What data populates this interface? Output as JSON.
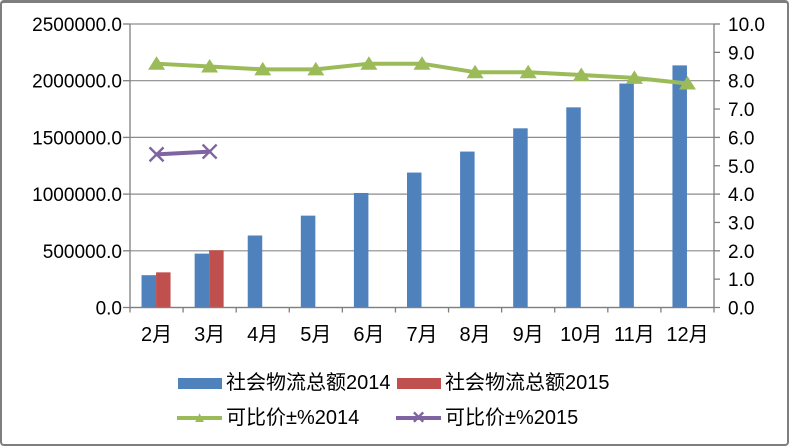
{
  "chart_data": {
    "type": "combo-bar-line",
    "title": "",
    "categories": [
      "2月",
      "3月",
      "4月",
      "5月",
      "6月",
      "7月",
      "8月",
      "9月",
      "10月",
      "11月",
      "12月"
    ],
    "series": [
      {
        "name": "社会物流总额2014",
        "type": "bar",
        "axis": "left",
        "color": "#4F81BD",
        "values": [
          285000,
          475000,
          635000,
          810000,
          1010000,
          1190000,
          1375000,
          1580000,
          1765000,
          1975000,
          2135000
        ]
      },
      {
        "name": "社会物流总额2015",
        "type": "bar",
        "axis": "left",
        "color": "#C0504D",
        "values": [
          310000,
          505000,
          null,
          null,
          null,
          null,
          null,
          null,
          null,
          null,
          null
        ]
      },
      {
        "name": "可比价±%2014",
        "type": "line",
        "marker": "triangle",
        "axis": "right",
        "color": "#9BBB59",
        "values": [
          8.6,
          8.5,
          8.4,
          8.4,
          8.6,
          8.6,
          8.3,
          8.3,
          8.2,
          8.1,
          7.9
        ]
      },
      {
        "name": "可比价±%2015",
        "type": "line",
        "marker": "x",
        "axis": "right",
        "color": "#8064A2",
        "values": [
          5.4,
          5.5,
          null,
          null,
          null,
          null,
          null,
          null,
          null,
          null,
          null
        ]
      }
    ],
    "left_axis": {
      "min": 0,
      "max": 2500000,
      "step": 500000,
      "tick_labels": [
        "0.0",
        "500000.0",
        "1000000.0",
        "1500000.0",
        "2000000.0",
        "2500000.0"
      ]
    },
    "right_axis": {
      "min": 0,
      "max": 10,
      "step": 1,
      "tick_labels": [
        "0.0",
        "1.0",
        "2.0",
        "3.0",
        "4.0",
        "5.0",
        "6.0",
        "7.0",
        "8.0",
        "9.0",
        "10.0"
      ]
    },
    "axis_color": "#7f7f7f",
    "grid_color": "#8c8c8c",
    "text_color": "#000000",
    "grid_on": true,
    "legend_position": "bottom"
  }
}
